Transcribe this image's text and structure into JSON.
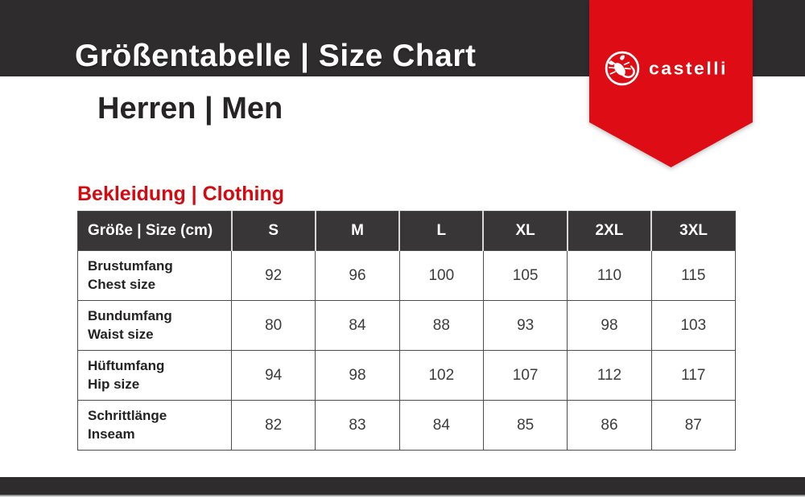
{
  "header": {
    "title": "Größentabelle | Size Chart",
    "subtitle": "Herren | Men"
  },
  "brand": {
    "name": "Castelli",
    "wordmark": "castelli",
    "icon": "scorpion-in-circle-icon",
    "ribbon_color": "#de0d15"
  },
  "section": {
    "title": "Bekleidung | Clothing",
    "title_color": "#d40a11"
  },
  "table": {
    "header": [
      "Größe | Size (cm)",
      "S",
      "M",
      "L",
      "XL",
      "2XL",
      "3XL"
    ],
    "rows": [
      {
        "label_de": "Brustumfang",
        "label_en": "Chest size",
        "values": [
          92,
          96,
          100,
          105,
          110,
          115
        ]
      },
      {
        "label_de": "Bundumfang",
        "label_en": "Waist size",
        "values": [
          80,
          84,
          88,
          93,
          98,
          103
        ]
      },
      {
        "label_de": "Hüftumfang",
        "label_en": "Hip size",
        "values": [
          94,
          98,
          102,
          107,
          112,
          117
        ]
      },
      {
        "label_de": "Schrittlänge",
        "label_en": "Inseam",
        "values": [
          82,
          83,
          84,
          85,
          86,
          87
        ]
      }
    ]
  },
  "colors": {
    "band_dark": "#2e2c2d",
    "table_header_dark": "#383637",
    "accent_red": "#de0d15",
    "title_red": "#d40a11",
    "cell_border": "#4d4d4d"
  }
}
